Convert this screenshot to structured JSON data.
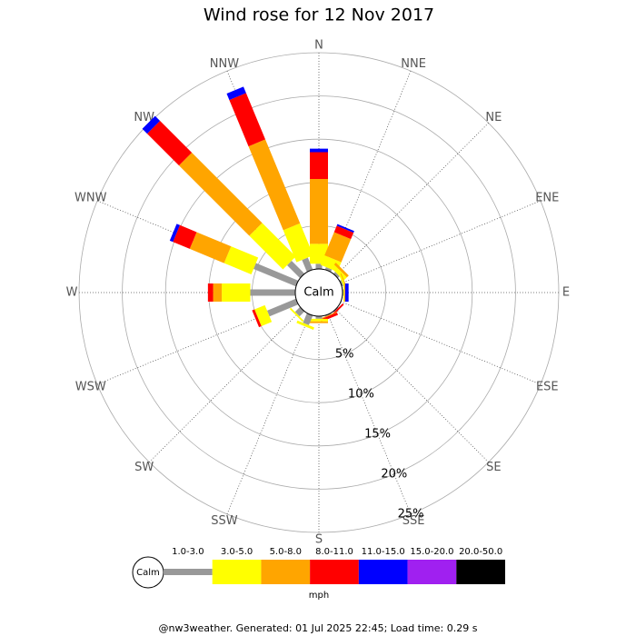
{
  "chart_data": {
    "type": "windrose",
    "title": "Wind rose for 12 Nov 2017",
    "categories": [
      "N",
      "NNE",
      "NE",
      "ENE",
      "E",
      "ESE",
      "SE",
      "SSE",
      "S",
      "SSW",
      "SW",
      "WSW",
      "W",
      "WNW",
      "NW",
      "NNW"
    ],
    "calm_label": "Calm",
    "unit_label": "mph",
    "rlim": [
      0,
      25
    ],
    "rticks": [
      {
        "value": 5,
        "label": "5%"
      },
      {
        "value": 10,
        "label": "10%"
      },
      {
        "value": 15,
        "label": "15%"
      },
      {
        "value": 20,
        "label": "20%"
      },
      {
        "value": 25,
        "label": "25%"
      }
    ],
    "series": [
      {
        "name": "1.0-3.0",
        "color": "#999999",
        "values": [
          0.6,
          0.3,
          0.3,
          0.2,
          0.1,
          0,
          0.1,
          0.1,
          0.3,
          1.2,
          0.8,
          3.6,
          5.2,
          5.3,
          2.1,
          1.5
        ]
      },
      {
        "name": "3.0-5.0",
        "color": "#ffff00",
        "values": [
          2.3,
          1.2,
          0.5,
          0.2,
          0.1,
          0,
          0,
          0,
          0.3,
          0.3,
          0.2,
          1.3,
          3.3,
          3.4,
          5.5,
          4.0
        ]
      },
      {
        "name": "5.0-8.0",
        "color": "#ffa500",
        "values": [
          7.5,
          2.9,
          0.3,
          0.1,
          0.1,
          0,
          0,
          0.1,
          0.2,
          0,
          0,
          0,
          1.0,
          4.3,
          11.5,
          10.5
        ]
      },
      {
        "name": "8.0-11.0",
        "color": "#ff0000",
        "values": [
          3.1,
          0.8,
          0,
          0,
          0,
          0,
          0.2,
          0.3,
          0,
          0,
          0,
          0.3,
          0.6,
          2.1,
          5.2,
          5.8
        ]
      },
      {
        "name": "11.0-15.0",
        "color": "#0000ff",
        "values": [
          0.4,
          0.2,
          0,
          0,
          0.4,
          0,
          0,
          0,
          0,
          0,
          0,
          0,
          0,
          0.4,
          0.8,
          0.8
        ]
      },
      {
        "name": "15.0-20.0",
        "color": "#a020f0",
        "values": [
          0,
          0,
          0,
          0,
          0,
          0,
          0,
          0,
          0,
          0,
          0,
          0,
          0,
          0,
          0,
          0
        ]
      },
      {
        "name": "20.0-50.0",
        "color": "#000000",
        "values": [
          0,
          0,
          0,
          0,
          0,
          0,
          0,
          0,
          0,
          0,
          0,
          0,
          0,
          0,
          0,
          0
        ]
      }
    ],
    "footer": "@nw3weather. Generated: 01 Jul 2025 22:45; Load time: 0.29 s"
  }
}
